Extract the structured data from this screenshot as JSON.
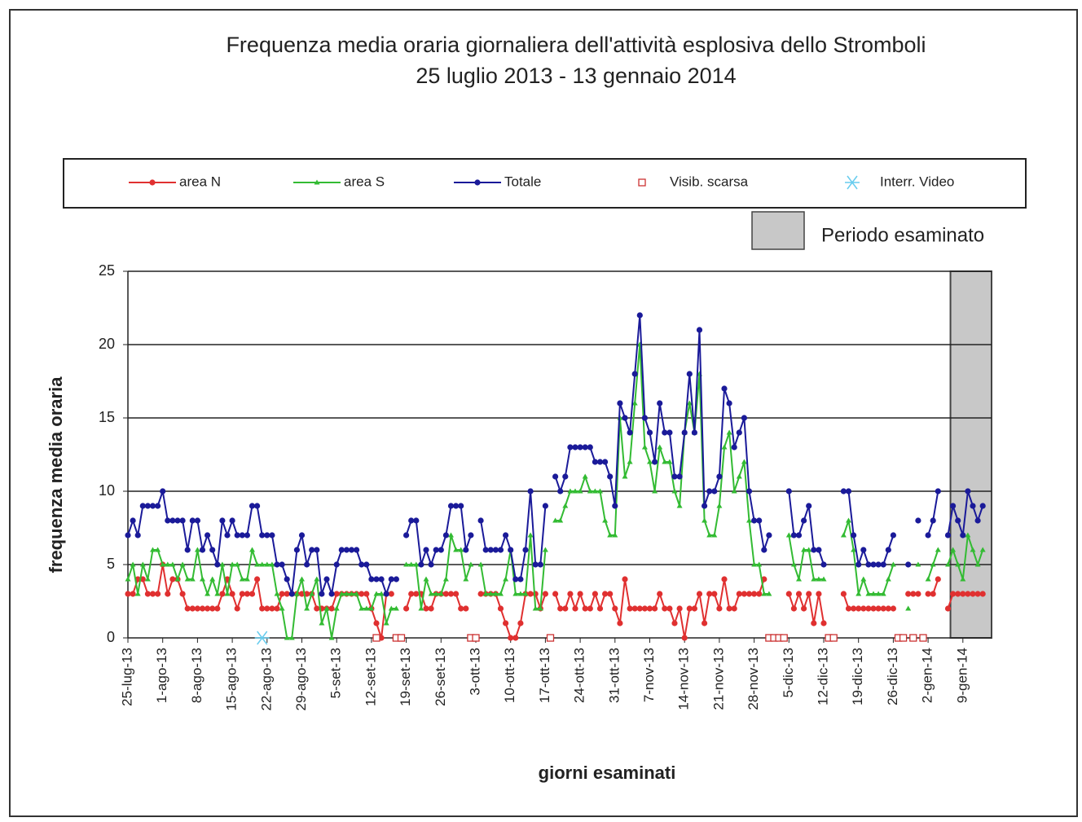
{
  "chart_data": {
    "type": "line",
    "title": "Frequenza media oraria giornaliera dell'attività esplosiva dello Stromboli",
    "subtitle": "25 luglio 2013 - 13 gennaio 2014",
    "x_label": "giorni esaminati",
    "y_label": "frequenza  media oraria",
    "ylim": [
      0,
      25
    ],
    "yticks": [
      0,
      5,
      10,
      15,
      20,
      25
    ],
    "grid": true,
    "highlight": {
      "label": "Periodo esaminato",
      "start": 166,
      "end": 172,
      "color": "#c8c8c8"
    },
    "categories": [
      "25-lug-13",
      null,
      null,
      null,
      null,
      null,
      null,
      "1-ago-13",
      null,
      null,
      null,
      null,
      null,
      null,
      "8-ago-13",
      null,
      null,
      null,
      null,
      null,
      null,
      "15-ago-13",
      null,
      null,
      null,
      null,
      null,
      null,
      "22-ago-13",
      null,
      null,
      null,
      null,
      null,
      null,
      "29-ago-13",
      null,
      null,
      null,
      null,
      null,
      null,
      "5-set-13",
      null,
      null,
      null,
      null,
      null,
      null,
      "12-set-13",
      null,
      null,
      null,
      null,
      null,
      null,
      "19-set-13",
      null,
      null,
      null,
      null,
      null,
      null,
      "26-set-13",
      null,
      null,
      null,
      null,
      null,
      null,
      "3-ott-13",
      null,
      null,
      null,
      null,
      null,
      null,
      "10-ott-13",
      null,
      null,
      null,
      null,
      null,
      null,
      "17-ott-13",
      null,
      null,
      null,
      null,
      null,
      null,
      "24-ott-13",
      null,
      null,
      null,
      null,
      null,
      null,
      "31-ott-13",
      null,
      null,
      null,
      null,
      null,
      null,
      "7-nov-13",
      null,
      null,
      null,
      null,
      null,
      null,
      "14-nov-13",
      null,
      null,
      null,
      null,
      null,
      null,
      "21-nov-13",
      null,
      null,
      null,
      null,
      null,
      null,
      "28-nov-13",
      null,
      null,
      null,
      null,
      null,
      null,
      "5-dic-13",
      null,
      null,
      null,
      null,
      null,
      null,
      "12-dic-13",
      null,
      null,
      null,
      null,
      null,
      null,
      "19-dic-13",
      null,
      null,
      null,
      null,
      null,
      null,
      "26-dic-13",
      null,
      null,
      null,
      null,
      null,
      null,
      "2-gen-14",
      null,
      null,
      null,
      null,
      null,
      null,
      "9-gen-14",
      null,
      null,
      null,
      null
    ],
    "series": [
      {
        "name": "area N",
        "color": "#e03030",
        "marker": "dot",
        "values": [
          3,
          3,
          4,
          4,
          3,
          3,
          3,
          5,
          3,
          4,
          4,
          3,
          2,
          2,
          2,
          2,
          2,
          2,
          2,
          3,
          4,
          3,
          2,
          3,
          3,
          3,
          4,
          2,
          2,
          2,
          2,
          3,
          3,
          3,
          3,
          3,
          3,
          3,
          2,
          2,
          2,
          2,
          3,
          3,
          3,
          3,
          3,
          3,
          3,
          2,
          1,
          0,
          3,
          3,
          null,
          null,
          2,
          3,
          3,
          3,
          2,
          2,
          3,
          3,
          3,
          3,
          3,
          2,
          2,
          null,
          null,
          3,
          3,
          3,
          3,
          2,
          1,
          0,
          0,
          1,
          3,
          3,
          3,
          2,
          3,
          null,
          3,
          2,
          2,
          3,
          2,
          3,
          2,
          2,
          3,
          2,
          3,
          3,
          2,
          1,
          4,
          2,
          2,
          2,
          2,
          2,
          2,
          3,
          2,
          2,
          1,
          2,
          0,
          2,
          2,
          3,
          1,
          3,
          3,
          2,
          4,
          2,
          2,
          3,
          3,
          3,
          3,
          3,
          4,
          null,
          null,
          null,
          null,
          3,
          2,
          3,
          2,
          3,
          1,
          3,
          1,
          null,
          null,
          null,
          3,
          2,
          2,
          2,
          2,
          2,
          2,
          2,
          2,
          2,
          2,
          null,
          null,
          3,
          3,
          3,
          null,
          3,
          3,
          4,
          null,
          2,
          3,
          3,
          3,
          3,
          3,
          3,
          3
        ]
      },
      {
        "name": "area S",
        "color": "#33bb33",
        "marker": "tri",
        "values": [
          4,
          5,
          3,
          5,
          4,
          6,
          6,
          5,
          5,
          5,
          4,
          5,
          4,
          4,
          6,
          4,
          3,
          4,
          3,
          5,
          3,
          5,
          5,
          4,
          4,
          6,
          5,
          5,
          5,
          5,
          3,
          2,
          0,
          0,
          3,
          4,
          2,
          3,
          4,
          1,
          2,
          0,
          2,
          3,
          3,
          3,
          3,
          2,
          2,
          2,
          3,
          3,
          1,
          2,
          2,
          null,
          5,
          5,
          5,
          2,
          4,
          3,
          3,
          3,
          4,
          7,
          6,
          6,
          4,
          5,
          null,
          5,
          3,
          3,
          3,
          3,
          4,
          6,
          3,
          3,
          3,
          7,
          2,
          2,
          6,
          null,
          8,
          8,
          9,
          10,
          10,
          10,
          11,
          10,
          10,
          10,
          8,
          7,
          7,
          15,
          11,
          12,
          16,
          20,
          13,
          12,
          10,
          13,
          12,
          12,
          10,
          9,
          14,
          16,
          14,
          18,
          8,
          7,
          7,
          9,
          13,
          14,
          10,
          11,
          12,
          8,
          5,
          5,
          3,
          3,
          null,
          null,
          null,
          7,
          5,
          4,
          6,
          6,
          4,
          4,
          4,
          null,
          null,
          null,
          7,
          8,
          6,
          3,
          4,
          3,
          3,
          3,
          3,
          4,
          5,
          null,
          null,
          2,
          null,
          5,
          null,
          4,
          5,
          6,
          null,
          5,
          6,
          5,
          4,
          7,
          6,
          5,
          6
        ]
      },
      {
        "name": "Totale",
        "color": "#1a1a99",
        "marker": "dot",
        "values": [
          7,
          8,
          7,
          9,
          9,
          9,
          9,
          10,
          8,
          8,
          8,
          8,
          6,
          8,
          8,
          6,
          7,
          6,
          5,
          8,
          7,
          8,
          7,
          7,
          7,
          9,
          9,
          7,
          7,
          7,
          5,
          5,
          4,
          3,
          6,
          7,
          5,
          6,
          6,
          3,
          4,
          3,
          5,
          6,
          6,
          6,
          6,
          5,
          5,
          4,
          4,
          4,
          3,
          4,
          4,
          null,
          7,
          8,
          8,
          5,
          6,
          5,
          6,
          6,
          7,
          9,
          9,
          9,
          6,
          7,
          null,
          8,
          6,
          6,
          6,
          6,
          7,
          6,
          4,
          4,
          6,
          10,
          5,
          5,
          9,
          null,
          11,
          10,
          11,
          13,
          13,
          13,
          13,
          13,
          12,
          12,
          12,
          11,
          9,
          16,
          15,
          14,
          18,
          22,
          15,
          14,
          12,
          16,
          14,
          14,
          11,
          11,
          14,
          18,
          14,
          21,
          9,
          10,
          10,
          11,
          17,
          16,
          13,
          14,
          15,
          10,
          8,
          8,
          6,
          7,
          null,
          null,
          null,
          10,
          7,
          7,
          8,
          9,
          6,
          6,
          5,
          null,
          null,
          null,
          10,
          10,
          7,
          5,
          6,
          5,
          5,
          5,
          5,
          6,
          7,
          null,
          null,
          5,
          null,
          8,
          null,
          7,
          8,
          10,
          null,
          7,
          9,
          8,
          7,
          10,
          9,
          8,
          9
        ]
      },
      {
        "name": "Visib. scarsa",
        "color": "#cc3333",
        "marker": "square-open",
        "values": [
          null,
          null,
          null,
          null,
          null,
          null,
          null,
          null,
          null,
          null,
          null,
          null,
          null,
          null,
          null,
          null,
          null,
          null,
          null,
          null,
          null,
          null,
          null,
          null,
          null,
          null,
          null,
          null,
          null,
          null,
          null,
          null,
          null,
          null,
          null,
          null,
          null,
          null,
          null,
          null,
          null,
          null,
          null,
          null,
          null,
          null,
          null,
          null,
          null,
          null,
          0,
          null,
          null,
          null,
          0,
          0,
          null,
          null,
          null,
          null,
          null,
          null,
          null,
          null,
          null,
          null,
          null,
          null,
          null,
          0,
          0,
          null,
          null,
          null,
          null,
          null,
          null,
          null,
          null,
          null,
          null,
          null,
          null,
          null,
          null,
          0,
          null,
          null,
          null,
          null,
          null,
          null,
          null,
          null,
          null,
          null,
          null,
          null,
          null,
          null,
          null,
          null,
          null,
          null,
          null,
          null,
          null,
          null,
          null,
          null,
          null,
          null,
          null,
          null,
          null,
          null,
          null,
          null,
          null,
          null,
          null,
          null,
          null,
          null,
          null,
          null,
          null,
          null,
          null,
          0,
          0,
          0,
          0,
          null,
          null,
          null,
          null,
          null,
          null,
          null,
          null,
          0,
          0,
          null,
          null,
          null,
          null,
          null,
          null,
          null,
          null,
          null,
          null,
          null,
          null,
          0,
          0,
          null,
          0,
          null,
          0,
          null,
          null,
          null,
          null,
          null,
          null,
          null,
          null,
          null,
          null,
          null,
          null
        ]
      },
      {
        "name": "Interr. Video",
        "color": "#66ccee",
        "marker": "star",
        "values": [
          null,
          null,
          null,
          null,
          null,
          null,
          null,
          null,
          null,
          null,
          null,
          null,
          null,
          null,
          null,
          null,
          null,
          null,
          null,
          null,
          null,
          null,
          null,
          null,
          null,
          null,
          null,
          0,
          null,
          null,
          null,
          null,
          null,
          null,
          null,
          null,
          null,
          null,
          null,
          null,
          null,
          null,
          null,
          null,
          null,
          null,
          null,
          null,
          null,
          null,
          null,
          null,
          null,
          null,
          null,
          null,
          null,
          null,
          null,
          null,
          null,
          null,
          null,
          null,
          null,
          null,
          null,
          null,
          null,
          null,
          null,
          null,
          null,
          null,
          null,
          null,
          null,
          null,
          null,
          null,
          null,
          null,
          null,
          null,
          null,
          null,
          null,
          null,
          null,
          null,
          null,
          null,
          null,
          null,
          null,
          null,
          null,
          null,
          null,
          null,
          null,
          null,
          null,
          null,
          null,
          null,
          null,
          null,
          null,
          null,
          null,
          null,
          null,
          null,
          null,
          null,
          null,
          null,
          null,
          null,
          null,
          null,
          null,
          null,
          null,
          null,
          null,
          null,
          null,
          null,
          null,
          null,
          null,
          null,
          null,
          null,
          null,
          null,
          null,
          null,
          null,
          null,
          null,
          null,
          null,
          null,
          null,
          null,
          null,
          null,
          null,
          null,
          null,
          null,
          null,
          null,
          null,
          null,
          null,
          null,
          null,
          null,
          null,
          null,
          null,
          null,
          null,
          null,
          null,
          null,
          null,
          null,
          null
        ]
      }
    ]
  }
}
